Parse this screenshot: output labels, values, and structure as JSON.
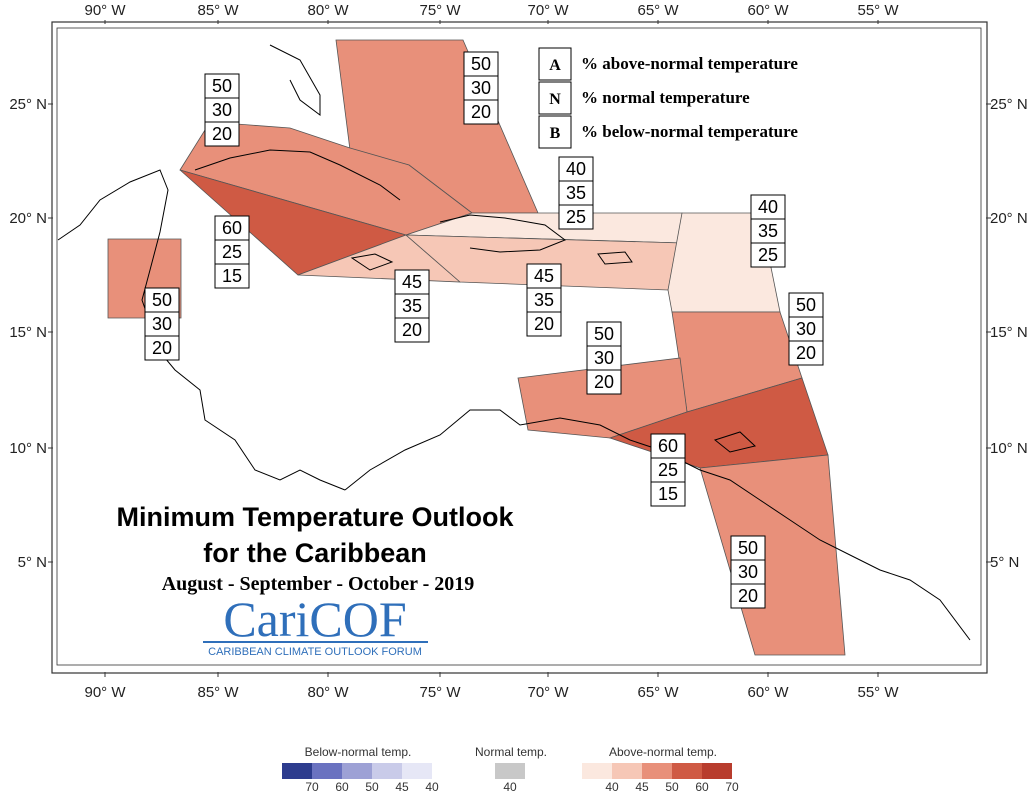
{
  "lon_labels": [
    "90° W",
    "85° W",
    "80° W",
    "75° W",
    "70° W",
    "65° W",
    "60° W",
    "55° W"
  ],
  "lat_labels": [
    "25° N",
    "20° N",
    "15° N",
    "10° N",
    "5° N"
  ],
  "legend": [
    {
      "key": "A",
      "text": "% above-normal temperature"
    },
    {
      "key": "N",
      "text": "% normal temperature"
    },
    {
      "key": "B",
      "text": "% below-normal temperature"
    }
  ],
  "title_line1": "Minimum Temperature Outlook",
  "title_line2": "for the Caribbean",
  "title_dates": "August - September - October - 2019",
  "logo": {
    "name": "CariCOF",
    "sub": "CARIBBEAN CLIMATE OUTLOOK FORUM"
  },
  "regions": [
    {
      "name": "bahamas",
      "A": "50",
      "N": "30",
      "B": "20",
      "color": "#e8907a"
    },
    {
      "name": "cuba-west",
      "A": "50",
      "N": "30",
      "B": "20",
      "color": "#e8907a"
    },
    {
      "name": "cuba-south-jamaica-cayman",
      "A": "60",
      "N": "25",
      "B": "15",
      "color": "#cf5a44"
    },
    {
      "name": "belize",
      "A": "50",
      "N": "30",
      "B": "20",
      "color": "#e8907a"
    },
    {
      "name": "jamaica-haiti-east",
      "A": "45",
      "N": "35",
      "B": "20",
      "color": "#f6c7b6"
    },
    {
      "name": "hispaniola-north",
      "A": "40",
      "N": "35",
      "B": "25",
      "color": "#fbe8df"
    },
    {
      "name": "hispaniola-pr-south",
      "A": "45",
      "N": "35",
      "B": "20",
      "color": "#f6c7b6"
    },
    {
      "name": "leeward-islands",
      "A": "40",
      "N": "35",
      "B": "25",
      "color": "#fbe8df"
    },
    {
      "name": "windward-islands",
      "A": "50",
      "N": "30",
      "B": "20",
      "color": "#e8907a"
    },
    {
      "name": "abc-islands",
      "A": "50",
      "N": "30",
      "B": "20",
      "color": "#e8907a"
    },
    {
      "name": "trinidad-tobago-barbados",
      "A": "60",
      "N": "25",
      "B": "15",
      "color": "#cf5a44"
    },
    {
      "name": "guianas",
      "A": "50",
      "N": "30",
      "B": "20",
      "color": "#e8907a"
    }
  ],
  "color_scale": {
    "below": {
      "title": "Below-normal temp.",
      "ticks": [
        "70",
        "60",
        "50",
        "45",
        "40"
      ],
      "colors": [
        "#2d3c8e",
        "#6a72c0",
        "#9da1d5",
        "#c9cbe9",
        "#e6e7f6"
      ]
    },
    "normal": {
      "title": "Normal temp.",
      "ticks": [
        "40"
      ],
      "colors": [
        "#c8c8c8"
      ]
    },
    "above": {
      "title": "Above-normal temp.",
      "ticks": [
        "40",
        "45",
        "50",
        "60",
        "70"
      ],
      "colors": [
        "#fbe8df",
        "#f6c7b6",
        "#e8907a",
        "#cf5a44",
        "#b83c2d"
      ]
    }
  }
}
